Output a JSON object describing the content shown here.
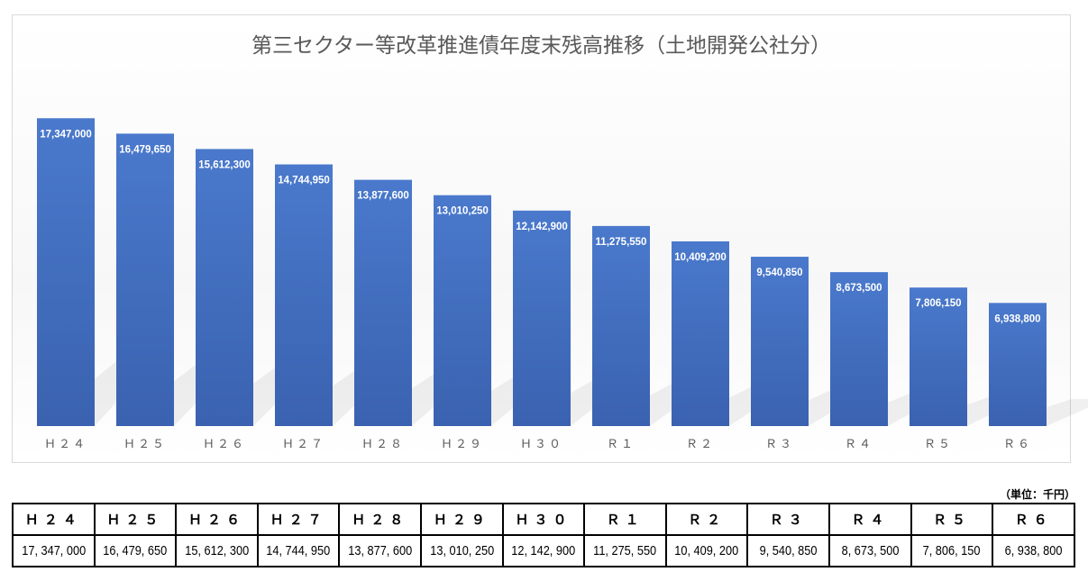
{
  "chart_data": {
    "type": "bar",
    "title": "第三セクター等改革推進債年度末残高推移（土地開発公社分）",
    "categories": [
      "Ｈ２４",
      "Ｈ２５",
      "Ｈ２６",
      "Ｈ２７",
      "Ｈ２８",
      "Ｈ２９",
      "Ｈ３０",
      "Ｒ１",
      "Ｒ２",
      "Ｒ３",
      "Ｒ４",
      "Ｒ５",
      "Ｒ６"
    ],
    "values": [
      17347000,
      16479650,
      15612300,
      14744950,
      13877600,
      13010250,
      12142900,
      11275550,
      10409200,
      9540850,
      8673500,
      7806150,
      6938800
    ],
    "data_labels": [
      "17,347,000",
      "16,479,650",
      "15,612,300",
      "14,744,950",
      "13,877,600",
      "13,010,250",
      "12,142,900",
      "11,275,550",
      "10,409,200",
      "9,540,850",
      "8,673,500",
      "7,806,150",
      "6,938,800"
    ],
    "ylim": [
      0,
      20000000
    ],
    "grid": false,
    "bar_color": "#4472c4",
    "xlabel": "",
    "ylabel": ""
  },
  "table": {
    "unit": "（単位：千円）",
    "headers": [
      "Ｈ２４",
      "Ｈ２５",
      "Ｈ２６",
      "Ｈ２７",
      "Ｈ２８",
      "Ｈ２９",
      "Ｈ３０",
      "Ｒ１",
      "Ｒ２",
      "Ｒ３",
      "Ｒ４",
      "Ｒ５",
      "Ｒ６"
    ],
    "values": [
      "17, 347, 000",
      "16, 479, 650",
      "15, 612, 300",
      "14, 744, 950",
      "13, 877, 600",
      "13, 010, 250",
      "12, 142, 900",
      "11, 275, 550",
      "10, 409, 200",
      "9, 540, 850",
      "8, 673, 500",
      "7, 806, 150",
      "6, 938, 800"
    ]
  }
}
